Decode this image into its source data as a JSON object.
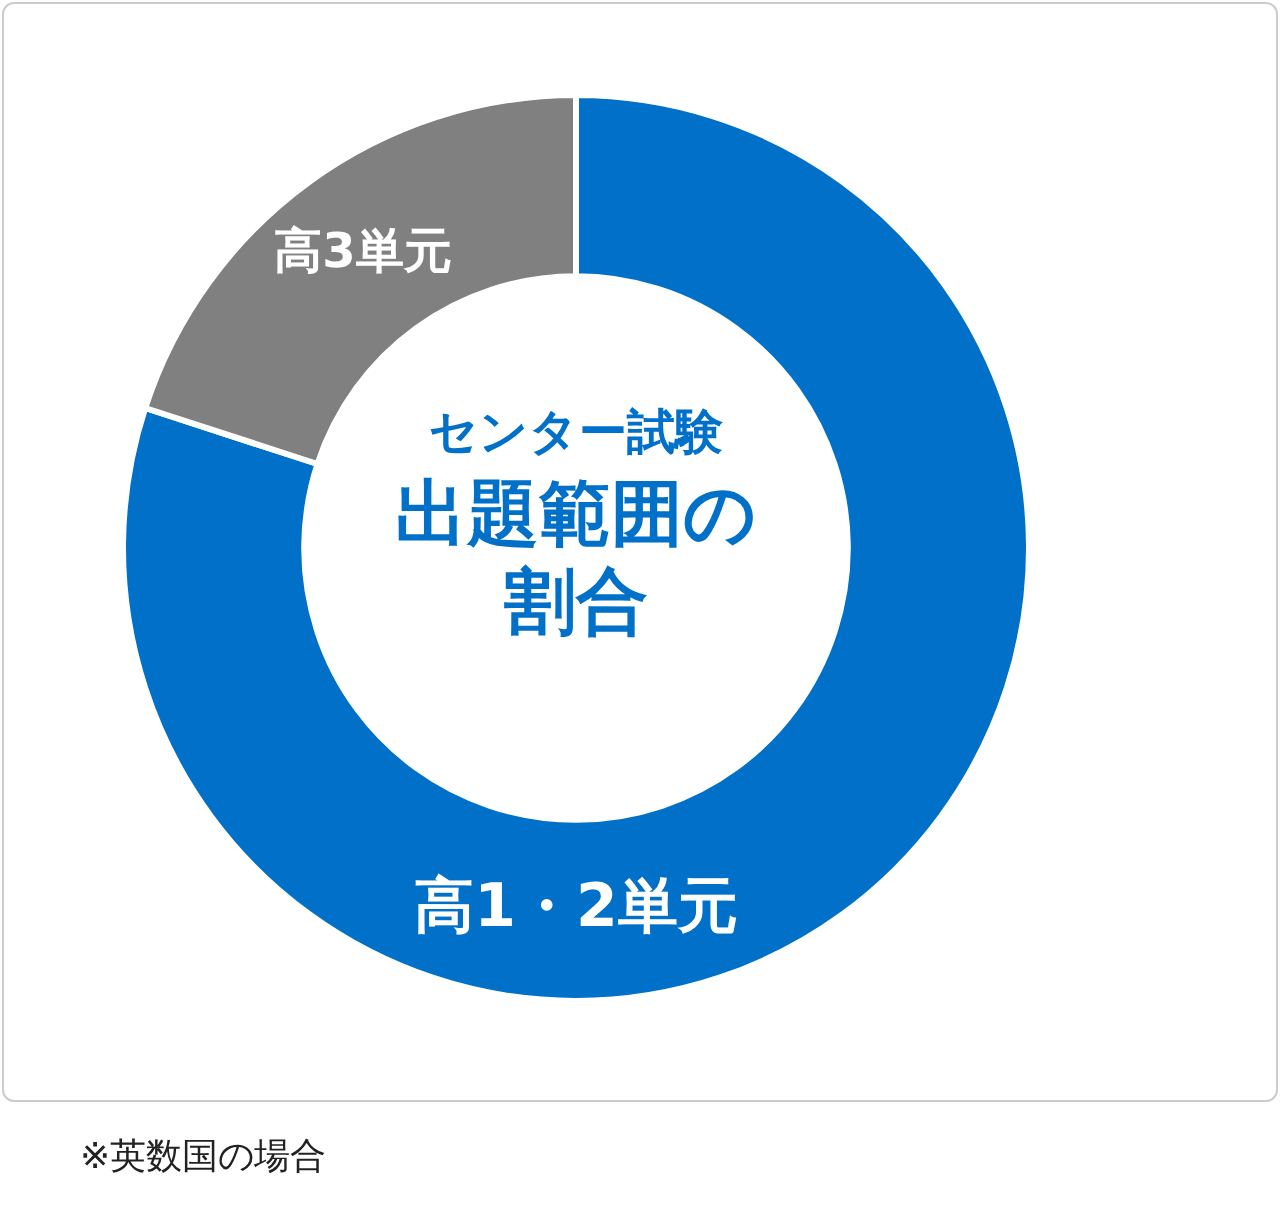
{
  "chart_data": {
    "type": "donut",
    "title": "センター試験",
    "subtitle": "出題範囲の割合",
    "categories": [
      "高1・2単元",
      "高3単元"
    ],
    "values": [
      80,
      20
    ],
    "colors": [
      "#0070c8",
      "#808080"
    ],
    "legend": false,
    "annotations": [
      "※英数国の場合"
    ]
  }
}
